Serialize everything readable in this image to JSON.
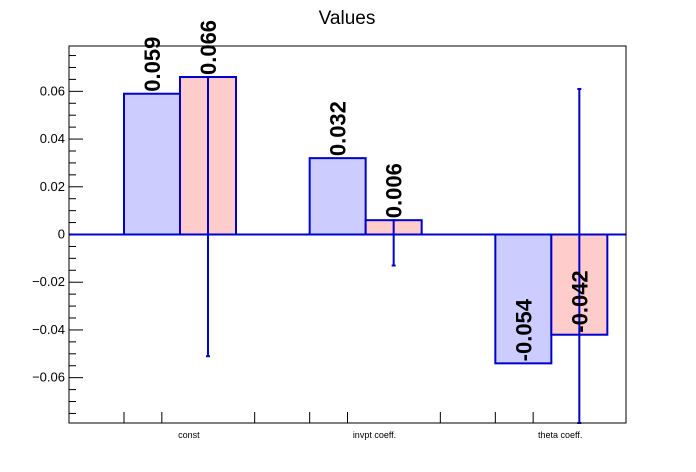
{
  "chart_data": {
    "type": "bar",
    "title": "Values",
    "xlabel": "",
    "ylabel": "",
    "categories": [
      "const",
      "invpt coeff.",
      "theta coeff."
    ],
    "ylim": [
      -0.079,
      0.079
    ],
    "yticks": [
      -0.06,
      -0.04,
      -0.02,
      0,
      0.02,
      0.04,
      0.06
    ],
    "ytick_labels": [
      "−0.06",
      "−0.04",
      "−0.02",
      "0",
      "0.02",
      "0.04",
      "0.06"
    ],
    "series": [
      {
        "values": [
          0.059,
          0.032,
          -0.054
        ],
        "value_labels": [
          "0.059",
          "0.032",
          "-0.054"
        ],
        "error_low": [
          null,
          null,
          null
        ],
        "error_high": [
          null,
          null,
          null
        ],
        "fill": "#ccccff",
        "stroke": "#0000cc"
      },
      {
        "values": [
          0.066,
          0.006,
          -0.042
        ],
        "value_labels": [
          "0.066",
          "0.006",
          "-0.042"
        ],
        "error_low": [
          -0.051,
          -0.013,
          -0.079
        ],
        "error_high": [
          0.066,
          0.006,
          0.061
        ],
        "fill": "#ffcccc",
        "stroke": "#0000cc"
      }
    ],
    "grid": false,
    "legend": "none"
  }
}
